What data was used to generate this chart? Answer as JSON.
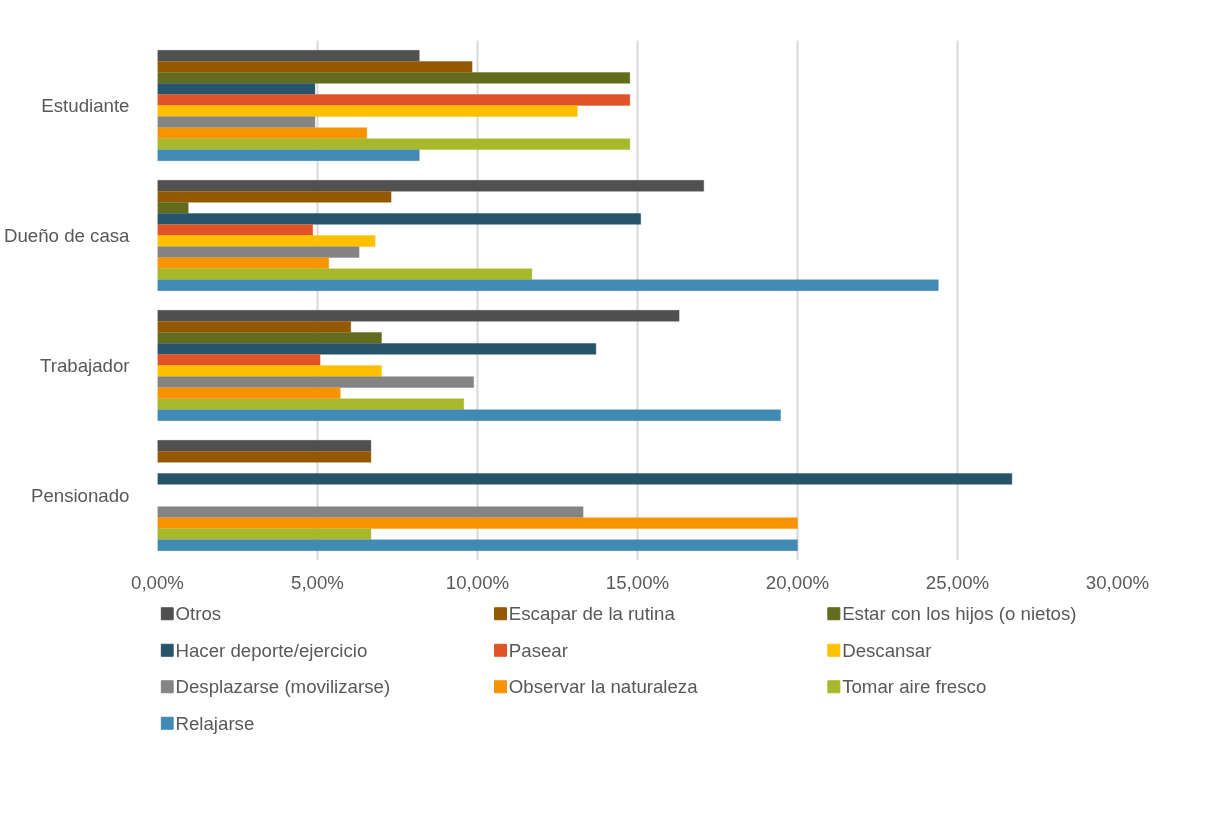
{
  "chart_data": {
    "type": "bar",
    "orientation": "horizontal",
    "categories": [
      "Estudiante",
      "Dueño de casa",
      "Trabajador",
      "Pensionado"
    ],
    "series": [
      {
        "name": "Otros",
        "color": "#505050",
        "values": [
          8.18,
          17.07,
          16.3,
          6.67
        ]
      },
      {
        "name": "Escapar de la rutina",
        "color": "#945800",
        "values": [
          9.83,
          7.3,
          6.04,
          6.67
        ]
      },
      {
        "name": "Estar con los hijos (o nietos)",
        "color": "#636b1c",
        "values": [
          14.76,
          0.96,
          7.0,
          null
        ]
      },
      {
        "name": "Hacer deporte/ejercicio",
        "color": "#26556b",
        "values": [
          4.92,
          15.1,
          13.7,
          26.7
        ]
      },
      {
        "name": "Pasear",
        "color": "#e05327",
        "values": [
          14.76,
          4.85,
          5.08,
          null
        ]
      },
      {
        "name": "Descansar",
        "color": "#ffc000",
        "values": [
          13.12,
          6.8,
          7.0,
          null
        ]
      },
      {
        "name": "Desplazarse (movilizarse)",
        "color": "#848484",
        "values": [
          4.92,
          6.3,
          9.88,
          13.3
        ]
      },
      {
        "name": "Observar la naturaleza",
        "color": "#f79300",
        "values": [
          6.54,
          5.35,
          5.71,
          20.0
        ]
      },
      {
        "name": "Tomar aire fresco",
        "color": "#a7b82a",
        "values": [
          14.76,
          11.7,
          9.57,
          6.67
        ]
      },
      {
        "name": "Relajarse",
        "color": "#418ab3",
        "values": [
          8.18,
          24.4,
          19.47,
          20.0
        ]
      }
    ],
    "xlim": [
      0,
      30
    ],
    "xticks": [
      {
        "value": 0,
        "label": "0,00%"
      },
      {
        "value": 5,
        "label": "5,00%"
      },
      {
        "value": 10,
        "label": "10,00%"
      },
      {
        "value": 15,
        "label": "15,00%"
      },
      {
        "value": 20,
        "label": "20,00%"
      },
      {
        "value": 25,
        "label": "25,00%"
      },
      {
        "value": 30,
        "label": "30,00%"
      }
    ],
    "grid": "x",
    "legend": "bottom"
  }
}
